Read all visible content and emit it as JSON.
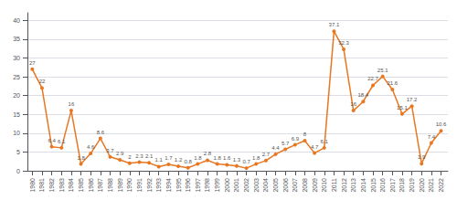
{
  "chart_data": {
    "type": "line",
    "x": [
      1980,
      1981,
      1982,
      1983,
      1984,
      1985,
      1986,
      1987,
      1988,
      1989,
      1990,
      1991,
      1992,
      1993,
      1994,
      1995,
      1996,
      1997,
      1998,
      1999,
      2000,
      2001,
      2002,
      2003,
      2004,
      2005,
      2006,
      2007,
      2008,
      2009,
      2010,
      2011,
      2012,
      2013,
      2014,
      2015,
      2016,
      2017,
      2018,
      2019,
      2020,
      2021,
      2022
    ],
    "values": [
      27,
      22,
      6.4,
      6.1,
      16,
      1.8,
      4.6,
      8.6,
      3.7,
      2.9,
      2,
      2.3,
      2.1,
      1.1,
      1.7,
      1.2,
      0.8,
      1.8,
      2.8,
      1.8,
      1.6,
      1.3,
      0.7,
      1.8,
      2.7,
      4.4,
      5.7,
      6.9,
      8,
      4.7,
      6.1,
      37.1,
      32.3,
      16,
      18.4,
      22.7,
      25.1,
      21.6,
      15.1,
      17.2,
      1.9,
      7.4,
      10.6
    ],
    "color": "#E87722",
    "marker": "circle",
    "xlim": [
      1979.5,
      2022.7
    ],
    "xticks": [
      1980,
      1981,
      1982,
      1983,
      1984,
      1985,
      1986,
      1987,
      1988,
      1989,
      1990,
      1991,
      1992,
      1993,
      1994,
      1995,
      1996,
      1997,
      1998,
      1999,
      2000,
      2001,
      2002,
      2003,
      2004,
      2005,
      2006,
      2007,
      2008,
      2009,
      2010,
      2011,
      2012,
      2013,
      2014,
      2015,
      2016,
      2017,
      2018,
      2019,
      2020,
      2021,
      2022
    ],
    "ylim": [
      0,
      42
    ],
    "yticks": [
      0,
      5,
      10,
      15,
      20,
      25,
      30,
      35,
      40
    ],
    "grid": true,
    "data_labels": true
  }
}
